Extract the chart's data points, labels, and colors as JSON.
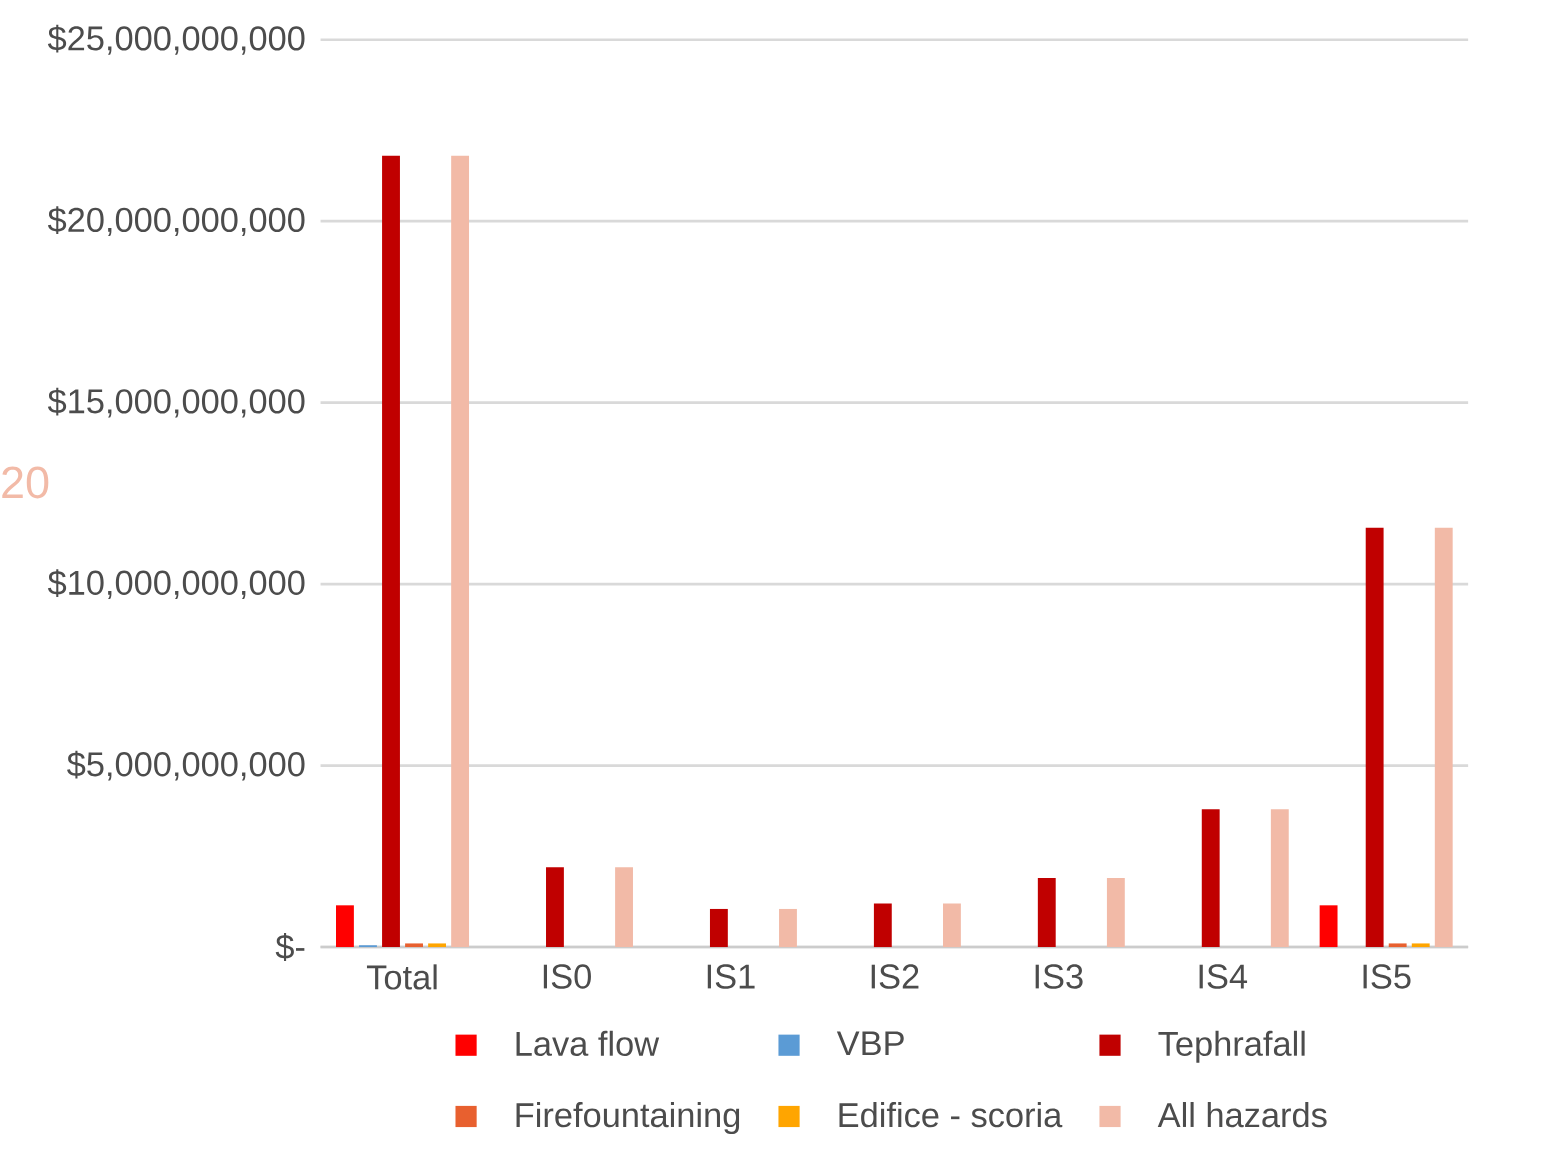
{
  "chart_data": {
    "type": "bar",
    "categories": [
      "Total",
      "IS0",
      "IS1",
      "IS2",
      "IS3",
      "IS4",
      "IS5"
    ],
    "series": [
      {
        "name": "Lava flow",
        "color": "#ff0000",
        "values": [
          1150000000,
          0,
          0,
          0,
          0,
          0,
          1150000000
        ]
      },
      {
        "name": "VBP",
        "color": "#5b9bd5",
        "values": [
          50000000,
          0,
          0,
          0,
          0,
          0,
          0
        ]
      },
      {
        "name": "Tephrafall",
        "color": "#c00000",
        "values": [
          21800000000,
          2200000000,
          1050000000,
          1200000000,
          1900000000,
          3800000000,
          11550000000
        ]
      },
      {
        "name": "Firefountaining",
        "color": "#e8602f",
        "values": [
          100000000,
          0,
          0,
          0,
          0,
          0,
          100000000
        ]
      },
      {
        "name": "Edifice - scoria",
        "color": "#ffa500",
        "values": [
          100000000,
          0,
          0,
          0,
          0,
          0,
          100000000
        ]
      },
      {
        "name": "All hazards",
        "color": "#f2baa7",
        "values": [
          21800000000,
          2200000000,
          1050000000,
          1200000000,
          1900000000,
          3800000000,
          11550000000
        ]
      }
    ],
    "ylim": [
      0,
      25000000000
    ],
    "yticks": [
      {
        "value": 0,
        "label": "$-"
      },
      {
        "value": 5000000000,
        "label": "$5,000,000,000"
      },
      {
        "value": 10000000000,
        "label": "$10,000,000,000"
      },
      {
        "value": 15000000000,
        "label": "$15,000,000,000"
      },
      {
        "value": 20000000000,
        "label": "$20,000,000,000"
      },
      {
        "value": 25000000000,
        "label": "$25,000,000,000"
      }
    ],
    "grid": "y",
    "legend": "bottom",
    "annotations": [
      "20"
    ]
  }
}
